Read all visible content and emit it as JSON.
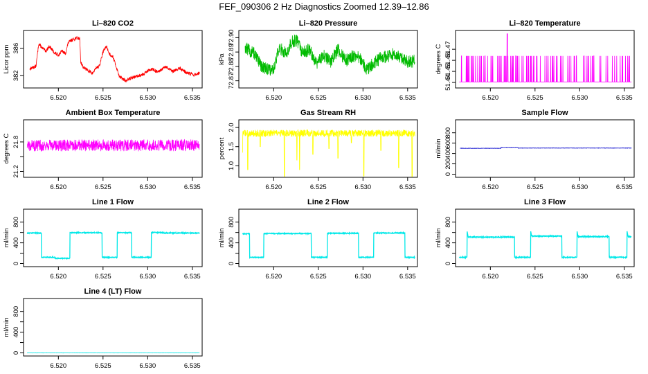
{
  "figure_title": "FEF_090306  2 Hz Diagnostics Zoomed 12.39–12.86",
  "chart_data": [
    {
      "id": "co2",
      "type": "line",
      "title": "Li–820 CO2",
      "ylabel": "Licor ppm",
      "color": "#ff0000",
      "xlim": [
        6.5161,
        6.5361
      ],
      "ylim": [
        380.2,
        388.6
      ],
      "xticks": [
        6.52,
        6.525,
        6.53,
        6.535
      ],
      "xtick_labels": [
        "6.520",
        "6.525",
        "6.530",
        "6.535"
      ],
      "yticks": [
        382,
        386
      ],
      "ytick_labels": [
        "382",
        "386"
      ],
      "knots": [
        [
          6.5168,
          383.0
        ],
        [
          6.5175,
          383.4
        ],
        [
          6.5178,
          386.7
        ],
        [
          6.5182,
          386.0
        ],
        [
          6.5186,
          385.6
        ],
        [
          6.519,
          386.3
        ],
        [
          6.5195,
          385.4
        ],
        [
          6.52,
          385.0
        ],
        [
          6.5204,
          385.6
        ],
        [
          6.5208,
          385.2
        ],
        [
          6.5211,
          386.8
        ],
        [
          6.5215,
          387.2
        ],
        [
          6.522,
          387.5
        ],
        [
          6.5224,
          387.4
        ],
        [
          6.5225,
          384.0
        ],
        [
          6.5228,
          383.2
        ],
        [
          6.5233,
          382.8
        ],
        [
          6.5238,
          382.3
        ],
        [
          6.5242,
          383.1
        ],
        [
          6.5246,
          383.4
        ],
        [
          6.525,
          385.5
        ],
        [
          6.5254,
          386.3
        ],
        [
          6.5257,
          385.2
        ],
        [
          6.5261,
          384.8
        ],
        [
          6.5265,
          383.2
        ],
        [
          6.5268,
          382.0
        ],
        [
          6.5272,
          381.5
        ],
        [
          6.5276,
          381.2
        ],
        [
          6.528,
          381.6
        ],
        [
          6.5288,
          381.9
        ],
        [
          6.5296,
          382.3
        ],
        [
          6.5304,
          383.0
        ],
        [
          6.5312,
          382.5
        ],
        [
          6.532,
          383.3
        ],
        [
          6.5328,
          382.6
        ],
        [
          6.5336,
          383.1
        ],
        [
          6.5344,
          382.4
        ],
        [
          6.5352,
          382.1
        ],
        [
          6.5358,
          382.4
        ]
      ],
      "noise": 0.25
    },
    {
      "id": "pressure",
      "type": "line",
      "title": "Li–820 Pressure",
      "ylabel": "kPa",
      "color": "#00bb00",
      "xlim": [
        6.5161,
        6.5361
      ],
      "ylim": [
        72.865,
        72.905
      ],
      "xticks": [
        6.52,
        6.525,
        6.53,
        6.535
      ],
      "xtick_labels": [
        "6.520",
        "6.525",
        "6.530",
        "6.535"
      ],
      "yticks": [
        72.87,
        72.88,
        72.89,
        72.9
      ],
      "ytick_labels": [
        "72.87",
        "72.88",
        "72.89",
        "72.90"
      ],
      "knots": [
        [
          6.5168,
          72.893
        ],
        [
          6.5178,
          72.889
        ],
        [
          6.5186,
          72.88
        ],
        [
          6.5194,
          72.878
        ],
        [
          6.52,
          72.878
        ],
        [
          6.5206,
          72.893
        ],
        [
          6.5214,
          72.889
        ],
        [
          6.522,
          72.897
        ],
        [
          6.5226,
          72.898
        ],
        [
          6.5232,
          72.889
        ],
        [
          6.524,
          72.892
        ],
        [
          6.5248,
          72.882
        ],
        [
          6.5256,
          72.888
        ],
        [
          6.5264,
          72.883
        ],
        [
          6.5272,
          72.892
        ],
        [
          6.528,
          72.884
        ],
        [
          6.5288,
          72.887
        ],
        [
          6.5296,
          72.886
        ],
        [
          6.5304,
          72.878
        ],
        [
          6.5312,
          72.882
        ],
        [
          6.532,
          72.886
        ],
        [
          6.5328,
          72.887
        ],
        [
          6.5336,
          72.889
        ],
        [
          6.5344,
          72.885
        ],
        [
          6.5352,
          72.883
        ],
        [
          6.5358,
          72.884
        ]
      ],
      "noise": 0.0045
    },
    {
      "id": "temp",
      "type": "line",
      "title": "Li–820 Temperature",
      "ylabel": "degrees C",
      "color": "#ff00ff",
      "xlim": [
        6.5161,
        6.5361
      ],
      "ylim": [
        51.435,
        51.487
      ],
      "xticks": [
        6.52,
        6.525,
        6.53,
        6.535
      ],
      "xtick_labels": [
        "6.520",
        "6.525",
        "6.530",
        "6.535"
      ],
      "yticks": [
        51.44,
        51.45,
        51.46,
        51.47
      ],
      "ytick_labels": [
        "51.44",
        "51.45",
        "51.46",
        "51.47"
      ],
      "base": 51.4405,
      "high": 51.464,
      "spike": [
        6.5219,
        51.484
      ],
      "highfrac": 0.12
    },
    {
      "id": "ambient",
      "type": "line",
      "title": "Ambient Box Temperature",
      "ylabel": "degrees C",
      "color": "#ff00ff",
      "xlim": [
        6.5161,
        6.5361
      ],
      "ylim": [
        21.08,
        22.25
      ],
      "xticks": [
        6.52,
        6.525,
        6.53,
        6.535
      ],
      "xtick_labels": [
        "6.520",
        "6.525",
        "6.530",
        "6.535"
      ],
      "yticks": [
        21.2,
        21.5,
        21.8
      ],
      "ytick_labels": [
        "21.2",
        "",
        "21.8"
      ],
      "center": 21.73,
      "noise": 0.12
    },
    {
      "id": "rh",
      "type": "line",
      "title": "Gas Stream RH",
      "ylabel": "percent",
      "color": "#ffff00",
      "xlim": [
        6.5161,
        6.5361
      ],
      "ylim": [
        0.7,
        2.2
      ],
      "xticks": [
        6.52,
        6.525,
        6.53,
        6.535
      ],
      "xtick_labels": [
        "6.520",
        "6.525",
        "6.530",
        "6.535"
      ],
      "yticks": [
        1.0,
        1.5,
        2.0
      ],
      "ytick_labels": [
        "1.0",
        "1.5",
        "2.0"
      ],
      "center": 1.85,
      "noise": 0.09,
      "dips": [
        [
          6.5165,
          1.35
        ],
        [
          6.5171,
          0.9
        ],
        [
          6.5185,
          1.5
        ],
        [
          6.5212,
          0.72
        ],
        [
          6.5226,
          1.15
        ],
        [
          6.5229,
          0.9
        ],
        [
          6.5244,
          1.3
        ],
        [
          6.5262,
          1.45
        ],
        [
          6.5272,
          1.2
        ],
        [
          6.5287,
          1.6
        ],
        [
          6.5301,
          0.73
        ],
        [
          6.532,
          1.4
        ],
        [
          6.534,
          0.95
        ],
        [
          6.5355,
          0.72
        ]
      ]
    },
    {
      "id": "sample",
      "type": "line",
      "title": "Sample Flow",
      "ylabel": "ml/min",
      "color": "#0000cc",
      "xlim": [
        6.5161,
        6.5361
      ],
      "ylim": [
        -60,
        1050
      ],
      "xticks": [
        6.52,
        6.525,
        6.53,
        6.535
      ],
      "xtick_labels": [
        "6.520",
        "6.525",
        "6.530",
        "6.535"
      ],
      "yticks": [
        0,
        200,
        400,
        600,
        800
      ],
      "ytick_labels": [
        "0",
        "200",
        "400",
        "600",
        "800"
      ],
      "segments": [
        [
          6.5166,
          6.5212,
          500
        ],
        [
          6.5212,
          6.5231,
          518
        ],
        [
          6.5231,
          6.5358,
          505
        ]
      ],
      "noise": 3
    },
    {
      "id": "line1",
      "type": "step",
      "title": "Line 1 Flow",
      "ylabel": "ml/min",
      "color": "#00e8e8",
      "xlim": [
        6.5161,
        6.5361
      ],
      "ylim": [
        -60,
        1050
      ],
      "xticks": [
        6.52,
        6.525,
        6.53,
        6.535
      ],
      "xtick_labels": [
        "6.520",
        "6.525",
        "6.530",
        "6.535"
      ],
      "yticks": [
        0,
        200,
        400,
        600,
        800
      ],
      "ytick_labels": [
        "0",
        "",
        "400",
        "",
        "800"
      ],
      "segments": [
        [
          6.5165,
          6.5181,
          590
        ],
        [
          6.5181,
          6.5196,
          120
        ],
        [
          6.5196,
          6.5213,
          100
        ],
        [
          6.5213,
          6.5249,
          595
        ],
        [
          6.5249,
          6.5266,
          120
        ],
        [
          6.5266,
          6.5282,
          595
        ],
        [
          6.5282,
          6.5302,
          120
        ],
        [
          6.5302,
          6.5304,
          120
        ],
        [
          6.5304,
          6.5318,
          600
        ],
        [
          6.5318,
          6.5358,
          590
        ]
      ],
      "noise": 8
    },
    {
      "id": "line2",
      "type": "step",
      "title": "Line 2 Flow",
      "ylabel": "ml/min",
      "color": "#00e8e8",
      "xlim": [
        6.5161,
        6.5361
      ],
      "ylim": [
        -60,
        1050
      ],
      "xticks": [
        6.52,
        6.525,
        6.53,
        6.535
      ],
      "xtick_labels": [
        "6.520",
        "6.525",
        "6.530",
        "6.535"
      ],
      "yticks": [
        0,
        200,
        400,
        600,
        800
      ],
      "ytick_labels": [
        "0",
        "",
        "400",
        "",
        "800"
      ],
      "segments": [
        [
          6.5165,
          6.5173,
          575
        ],
        [
          6.5173,
          6.5189,
          120
        ],
        [
          6.5189,
          6.5242,
          580
        ],
        [
          6.5242,
          6.526,
          120
        ],
        [
          6.526,
          6.5295,
          585
        ],
        [
          6.5295,
          6.5312,
          120
        ],
        [
          6.5312,
          6.5347,
          590
        ],
        [
          6.5347,
          6.5358,
          120
        ]
      ],
      "noise": 8
    },
    {
      "id": "line3",
      "type": "step",
      "title": "Line 3 Flow",
      "ylabel": "ml/min",
      "color": "#00e8e8",
      "xlim": [
        6.5161,
        6.5361
      ],
      "ylim": [
        -60,
        1050
      ],
      "xticks": [
        6.52,
        6.525,
        6.53,
        6.535
      ],
      "xtick_labels": [
        "6.520",
        "6.525",
        "6.530",
        "6.535"
      ],
      "yticks": [
        0,
        200,
        400,
        600,
        800
      ],
      "ytick_labels": [
        "0",
        "",
        "400",
        "",
        "800"
      ],
      "segments": [
        [
          6.5165,
          6.5174,
          120
        ],
        [
          6.5174,
          6.5227,
          510
        ],
        [
          6.5227,
          6.5245,
          120
        ],
        [
          6.5245,
          6.528,
          530
        ],
        [
          6.528,
          6.5297,
          120
        ],
        [
          6.5297,
          6.5333,
          520
        ],
        [
          6.5333,
          6.5353,
          120
        ],
        [
          6.5353,
          6.5358,
          520
        ]
      ],
      "spikes": [
        6.5174,
        6.5245,
        6.5297,
        6.5353
      ],
      "noise": 9
    },
    {
      "id": "line4",
      "type": "line",
      "title": "Line 4 (LT) Flow",
      "ylabel": "ml/min",
      "color": "#00e8e8",
      "xlim": [
        6.5161,
        6.5361
      ],
      "ylim": [
        -60,
        1050
      ],
      "xticks": [
        6.52,
        6.525,
        6.53,
        6.535
      ],
      "xtick_labels": [
        "6.520",
        "6.525",
        "6.530",
        "6.535"
      ],
      "yticks": [
        0,
        200,
        400,
        600,
        800
      ],
      "ytick_labels": [
        "0",
        "",
        "400",
        "",
        "800"
      ],
      "segments": [
        [
          6.5165,
          6.5358,
          0
        ]
      ],
      "noise": 2
    }
  ]
}
